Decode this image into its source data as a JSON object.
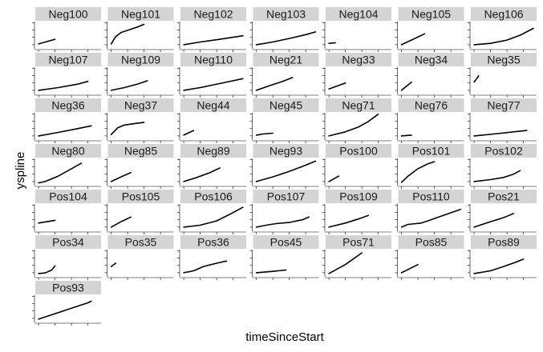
{
  "chart_data": {
    "type": "line",
    "layout": "facet-grid",
    "title": "",
    "xlabel": "timeSinceStart",
    "ylabel": "yspline",
    "grid": false,
    "ticks_labeled": false,
    "colors": {
      "strip_bg": "#d4d4d4",
      "line": "#000000",
      "axis": "#000000"
    },
    "note_values": "Axes carry no numeric tick labels; x and y are read as fractions (0-1) of each shared panel's axis range.",
    "panels": [
      {
        "name": "Neg100",
        "x": [
          0.05,
          0.3
        ],
        "y": [
          0.18,
          0.35
        ]
      },
      {
        "name": "Neg101",
        "x": [
          0.05,
          0.12,
          0.2,
          0.3,
          0.45,
          0.55
        ],
        "y": [
          0.18,
          0.45,
          0.6,
          0.68,
          0.8,
          0.9
        ]
      },
      {
        "name": "Neg102",
        "x": [
          0.05,
          0.3,
          0.6,
          0.95
        ],
        "y": [
          0.15,
          0.25,
          0.35,
          0.48
        ]
      },
      {
        "name": "Neg103",
        "x": [
          0.05,
          0.3,
          0.55,
          0.8,
          0.95
        ],
        "y": [
          0.15,
          0.25,
          0.38,
          0.52,
          0.62
        ]
      },
      {
        "name": "Neg104",
        "x": [
          0.05,
          0.15
        ],
        "y": [
          0.2,
          0.22
        ]
      },
      {
        "name": "Neg105",
        "x": [
          0.05,
          0.2,
          0.4
        ],
        "y": [
          0.15,
          0.32,
          0.55
        ]
      },
      {
        "name": "Neg106",
        "x": [
          0.05,
          0.3,
          0.55,
          0.75,
          0.95
        ],
        "y": [
          0.15,
          0.2,
          0.32,
          0.5,
          0.75
        ]
      },
      {
        "name": "Neg107",
        "x": [
          0.05,
          0.35,
          0.65,
          0.8
        ],
        "y": [
          0.15,
          0.25,
          0.38,
          0.48
        ]
      },
      {
        "name": "Neg109",
        "x": [
          0.05,
          0.25,
          0.45,
          0.6
        ],
        "y": [
          0.15,
          0.25,
          0.38,
          0.5
        ]
      },
      {
        "name": "Neg110",
        "x": [
          0.05,
          0.3,
          0.6,
          0.95
        ],
        "y": [
          0.15,
          0.25,
          0.4,
          0.58
        ]
      },
      {
        "name": "Neg21",
        "x": [
          0.05,
          0.25,
          0.45,
          0.6
        ],
        "y": [
          0.15,
          0.32,
          0.48,
          0.62
        ]
      },
      {
        "name": "Neg33",
        "x": [
          0.05,
          0.3
        ],
        "y": [
          0.2,
          0.42
        ]
      },
      {
        "name": "Neg34",
        "x": [
          0.05,
          0.2
        ],
        "y": [
          0.15,
          0.45
        ]
      },
      {
        "name": "Neg35",
        "x": [
          0.05,
          0.12
        ],
        "y": [
          0.45,
          0.68
        ]
      },
      {
        "name": "Neg36",
        "x": [
          0.05,
          0.35,
          0.65,
          0.85
        ],
        "y": [
          0.15,
          0.28,
          0.42,
          0.52
        ]
      },
      {
        "name": "Neg37",
        "x": [
          0.05,
          0.15,
          0.25,
          0.4,
          0.55
        ],
        "y": [
          0.2,
          0.45,
          0.55,
          0.6,
          0.65
        ]
      },
      {
        "name": "Neg44",
        "x": [
          0.05,
          0.2
        ],
        "y": [
          0.18,
          0.35
        ]
      },
      {
        "name": "Neg45",
        "x": [
          0.05,
          0.15,
          0.3
        ],
        "y": [
          0.18,
          0.22,
          0.25
        ]
      },
      {
        "name": "Neg71",
        "x": [
          0.05,
          0.3,
          0.5,
          0.65,
          0.8
        ],
        "y": [
          0.15,
          0.3,
          0.48,
          0.68,
          0.95
        ]
      },
      {
        "name": "Neg76",
        "x": [
          0.05,
          0.2
        ],
        "y": [
          0.15,
          0.18
        ]
      },
      {
        "name": "Neg77",
        "x": [
          0.05,
          0.35,
          0.65,
          0.85
        ],
        "y": [
          0.15,
          0.22,
          0.3,
          0.35
        ]
      },
      {
        "name": "Neg80",
        "x": [
          0.05,
          0.15,
          0.35,
          0.55,
          0.7
        ],
        "y": [
          0.1,
          0.15,
          0.35,
          0.62,
          0.82
        ]
      },
      {
        "name": "Neg85",
        "x": [
          0.05,
          0.2,
          0.35
        ],
        "y": [
          0.15,
          0.32,
          0.48
        ]
      },
      {
        "name": "Neg89",
        "x": [
          0.05,
          0.25,
          0.45,
          0.6
        ],
        "y": [
          0.15,
          0.3,
          0.48,
          0.65
        ]
      },
      {
        "name": "Neg93",
        "x": [
          0.05,
          0.3,
          0.55,
          0.8,
          0.95
        ],
        "y": [
          0.15,
          0.32,
          0.52,
          0.75,
          0.9
        ]
      },
      {
        "name": "Pos100",
        "x": [
          0.05,
          0.2
        ],
        "y": [
          0.15,
          0.35
        ]
      },
      {
        "name": "Pos101",
        "x": [
          0.05,
          0.15,
          0.3,
          0.45,
          0.55
        ],
        "y": [
          0.12,
          0.35,
          0.62,
          0.8,
          0.88
        ]
      },
      {
        "name": "Pos102",
        "x": [
          0.05,
          0.3,
          0.5,
          0.65,
          0.75
        ],
        "y": [
          0.15,
          0.22,
          0.3,
          0.42,
          0.55
        ]
      },
      {
        "name": "Pos104",
        "x": [
          0.05,
          0.15,
          0.3
        ],
        "y": [
          0.3,
          0.34,
          0.4
        ]
      },
      {
        "name": "Pos105",
        "x": [
          0.05,
          0.2,
          0.35
        ],
        "y": [
          0.15,
          0.35,
          0.52
        ]
      },
      {
        "name": "Pos106",
        "x": [
          0.05,
          0.3,
          0.55,
          0.75,
          0.95
        ],
        "y": [
          0.15,
          0.22,
          0.38,
          0.62,
          0.88
        ]
      },
      {
        "name": "Pos107",
        "x": [
          0.05,
          0.2,
          0.35,
          0.55,
          0.75,
          0.85
        ],
        "y": [
          0.15,
          0.22,
          0.28,
          0.32,
          0.42,
          0.52
        ]
      },
      {
        "name": "Pos109",
        "x": [
          0.05,
          0.3,
          0.5,
          0.65
        ],
        "y": [
          0.15,
          0.3,
          0.45,
          0.58
        ]
      },
      {
        "name": "Pos110",
        "x": [
          0.05,
          0.15,
          0.35,
          0.45,
          0.65,
          0.85,
          0.95
        ],
        "y": [
          0.15,
          0.25,
          0.3,
          0.38,
          0.55,
          0.72,
          0.8
        ]
      },
      {
        "name": "Pos21",
        "x": [
          0.05,
          0.3,
          0.5,
          0.65
        ],
        "y": [
          0.15,
          0.35,
          0.5,
          0.65
        ]
      },
      {
        "name": "Pos34",
        "x": [
          0.05,
          0.15,
          0.25,
          0.3
        ],
        "y": [
          0.12,
          0.14,
          0.25,
          0.4
        ]
      },
      {
        "name": "Pos35",
        "x": [
          0.05,
          0.12
        ],
        "y": [
          0.38,
          0.5
        ]
      },
      {
        "name": "Pos36",
        "x": [
          0.05,
          0.2,
          0.35,
          0.55,
          0.7
        ],
        "y": [
          0.15,
          0.22,
          0.38,
          0.5,
          0.58
        ]
      },
      {
        "name": "Pos45",
        "x": [
          0.05,
          0.3,
          0.5
        ],
        "y": [
          0.15,
          0.2,
          0.25
        ]
      },
      {
        "name": "Pos71",
        "x": [
          0.05,
          0.3,
          0.55
        ],
        "y": [
          0.12,
          0.45,
          0.88
        ]
      },
      {
        "name": "Pos85",
        "x": [
          0.05,
          0.3
        ],
        "y": [
          0.15,
          0.45
        ]
      },
      {
        "name": "Pos89",
        "x": [
          0.05,
          0.3,
          0.5,
          0.7,
          0.8
        ],
        "y": [
          0.12,
          0.22,
          0.38,
          0.55,
          0.65
        ]
      },
      {
        "name": "Pos93",
        "x": [
          0.05,
          0.3,
          0.55,
          0.8,
          0.85
        ],
        "y": [
          0.12,
          0.32,
          0.52,
          0.72,
          0.78
        ]
      }
    ]
  }
}
